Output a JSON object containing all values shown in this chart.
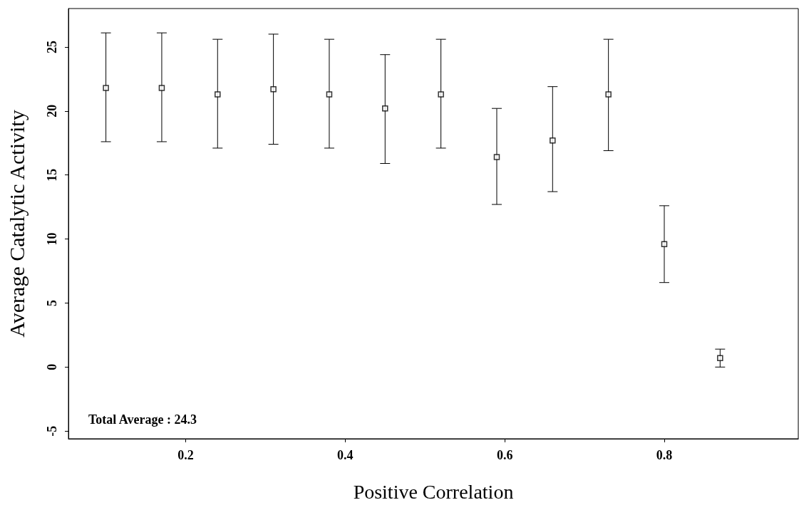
{
  "chart_data": {
    "type": "scatter",
    "xlabel": "Positive Correlation",
    "ylabel": "Average Catalytic Activity",
    "x": [
      0.1,
      0.17,
      0.24,
      0.31,
      0.38,
      0.45,
      0.52,
      0.59,
      0.66,
      0.73,
      0.8,
      0.87
    ],
    "values": [
      21.8,
      21.8,
      21.3,
      21.7,
      21.3,
      20.2,
      21.3,
      16.4,
      17.7,
      21.3,
      9.6,
      0.7
    ],
    "errors": [
      [
        17.6,
        26.1
      ],
      [
        17.6,
        26.1
      ],
      [
        17.1,
        25.6
      ],
      [
        17.4,
        26.0
      ],
      [
        17.1,
        25.6
      ],
      [
        15.9,
        24.4
      ],
      [
        17.1,
        25.6
      ],
      [
        12.7,
        20.2
      ],
      [
        13.7,
        21.9
      ],
      [
        16.9,
        25.6
      ],
      [
        6.6,
        12.6
      ],
      [
        0.0,
        1.4
      ]
    ],
    "color": "#000000",
    "marker": "square",
    "grid": false,
    "xlim": [
      0.053,
      0.968
    ],
    "xticks": [
      0.2,
      0.4,
      0.6,
      0.8
    ],
    "ylim": [
      -5.6,
      28
    ],
    "yticks": [
      -5,
      0,
      5,
      10,
      15,
      20,
      25
    ],
    "annotations": [
      "Total Average : 24.3"
    ]
  }
}
